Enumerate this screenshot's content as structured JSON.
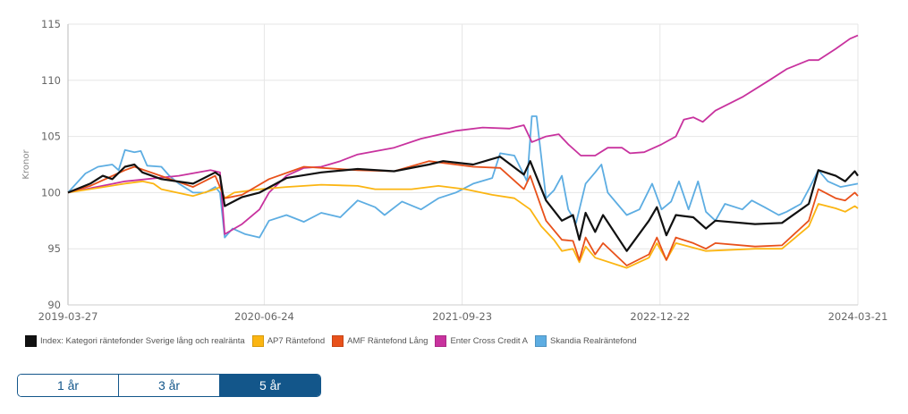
{
  "chart_data": {
    "type": "line",
    "ylabel": "Kronor",
    "ylim": [
      90,
      115
    ],
    "yticks": [
      "90",
      "95",
      "100",
      "105",
      "110",
      "115"
    ],
    "xlim": [
      0,
      4.99
    ],
    "x_unit": "years since 2019-03-27",
    "xticks": [
      {
        "t": 0,
        "label": "2019-03-27"
      },
      {
        "t": 1.24,
        "label": "2020-06-24"
      },
      {
        "t": 2.49,
        "label": "2021-09-23"
      },
      {
        "t": 3.74,
        "label": "2022-12-22"
      },
      {
        "t": 4.99,
        "label": "2024-03-21"
      }
    ],
    "grid": true,
    "legend_position": "bottom-left",
    "series": [
      {
        "name": "Skandia Realräntefond",
        "color": "#5dade2",
        "points": [
          [
            0,
            100
          ],
          [
            0.11,
            101.7
          ],
          [
            0.19,
            102.3
          ],
          [
            0.28,
            102.5
          ],
          [
            0.32,
            102
          ],
          [
            0.36,
            103.8
          ],
          [
            0.42,
            103.6
          ],
          [
            0.46,
            103.7
          ],
          [
            0.5,
            102.4
          ],
          [
            0.59,
            102.3
          ],
          [
            0.64,
            101.5
          ],
          [
            0.7,
            100.8
          ],
          [
            0.79,
            100
          ],
          [
            0.87,
            100
          ],
          [
            0.93,
            100.5
          ],
          [
            0.96,
            100
          ],
          [
            0.99,
            96
          ],
          [
            1.04,
            96.8
          ],
          [
            1.12,
            96.3
          ],
          [
            1.21,
            96
          ],
          [
            1.27,
            97.5
          ],
          [
            1.38,
            98
          ],
          [
            1.49,
            97.4
          ],
          [
            1.6,
            98.2
          ],
          [
            1.72,
            97.8
          ],
          [
            1.83,
            99.3
          ],
          [
            1.94,
            98.7
          ],
          [
            2.0,
            98
          ],
          [
            2.11,
            99.2
          ],
          [
            2.23,
            98.5
          ],
          [
            2.34,
            99.5
          ],
          [
            2.45,
            100
          ],
          [
            2.56,
            100.8
          ],
          [
            2.68,
            101.3
          ],
          [
            2.73,
            103.5
          ],
          [
            2.82,
            103.3
          ],
          [
            2.9,
            101
          ],
          [
            2.93,
            106.8
          ],
          [
            2.96,
            106.8
          ],
          [
            3.02,
            99.5
          ],
          [
            3.07,
            100.2
          ],
          [
            3.12,
            101.5
          ],
          [
            3.16,
            98.5
          ],
          [
            3.21,
            97.3
          ],
          [
            3.27,
            100.8
          ],
          [
            3.33,
            101.8
          ],
          [
            3.37,
            102.5
          ],
          [
            3.41,
            100
          ],
          [
            3.47,
            99
          ],
          [
            3.53,
            98
          ],
          [
            3.61,
            98.5
          ],
          [
            3.69,
            100.8
          ],
          [
            3.75,
            98.5
          ],
          [
            3.81,
            99.2
          ],
          [
            3.86,
            101
          ],
          [
            3.92,
            98.5
          ],
          [
            3.98,
            101
          ],
          [
            4.03,
            98.3
          ],
          [
            4.09,
            97.5
          ],
          [
            4.15,
            99
          ],
          [
            4.26,
            98.5
          ],
          [
            4.32,
            99.3
          ],
          [
            4.4,
            98.7
          ],
          [
            4.49,
            98
          ],
          [
            4.54,
            98.3
          ],
          [
            4.63,
            99
          ],
          [
            4.68,
            100.3
          ],
          [
            4.74,
            102
          ],
          [
            4.8,
            101
          ],
          [
            4.88,
            100.5
          ],
          [
            4.99,
            100.8
          ]
        ]
      },
      {
        "name": "Enter Cross Credit A",
        "color": "#c8329e",
        "points": [
          [
            0,
            100
          ],
          [
            0.36,
            101
          ],
          [
            0.7,
            101.5
          ],
          [
            0.9,
            102
          ],
          [
            0.96,
            101.8
          ],
          [
            0.99,
            96.3
          ],
          [
            1.1,
            97.2
          ],
          [
            1.21,
            98.5
          ],
          [
            1.27,
            100
          ],
          [
            1.38,
            101.5
          ],
          [
            1.49,
            102.2
          ],
          [
            1.6,
            102.3
          ],
          [
            1.72,
            102.8
          ],
          [
            1.83,
            103.4
          ],
          [
            2.06,
            104
          ],
          [
            2.23,
            104.8
          ],
          [
            2.45,
            105.5
          ],
          [
            2.62,
            105.8
          ],
          [
            2.79,
            105.7
          ],
          [
            2.88,
            106
          ],
          [
            2.93,
            104.5
          ],
          [
            3.02,
            105
          ],
          [
            3.1,
            105.2
          ],
          [
            3.16,
            104.3
          ],
          [
            3.24,
            103.3
          ],
          [
            3.33,
            103.3
          ],
          [
            3.41,
            104
          ],
          [
            3.5,
            104
          ],
          [
            3.55,
            103.5
          ],
          [
            3.64,
            103.6
          ],
          [
            3.75,
            104.3
          ],
          [
            3.84,
            105
          ],
          [
            3.89,
            106.5
          ],
          [
            3.95,
            106.7
          ],
          [
            4.01,
            106.3
          ],
          [
            4.09,
            107.3
          ],
          [
            4.26,
            108.5
          ],
          [
            4.43,
            110
          ],
          [
            4.54,
            111
          ],
          [
            4.68,
            111.8
          ],
          [
            4.74,
            111.8
          ],
          [
            4.85,
            112.8
          ],
          [
            4.94,
            113.7
          ],
          [
            4.99,
            114
          ]
        ]
      },
      {
        "name": "AP7 Räntefond",
        "color": "#fbb512",
        "points": [
          [
            0,
            100
          ],
          [
            0.36,
            100.8
          ],
          [
            0.47,
            101
          ],
          [
            0.54,
            100.8
          ],
          [
            0.59,
            100.3
          ],
          [
            0.79,
            99.7
          ],
          [
            0.93,
            100.3
          ],
          [
            0.96,
            100.5
          ],
          [
            0.99,
            99.5
          ],
          [
            1.05,
            100
          ],
          [
            1.21,
            100.3
          ],
          [
            1.38,
            100.5
          ],
          [
            1.6,
            100.7
          ],
          [
            1.83,
            100.6
          ],
          [
            1.94,
            100.3
          ],
          [
            2.17,
            100.3
          ],
          [
            2.34,
            100.6
          ],
          [
            2.51,
            100.3
          ],
          [
            2.68,
            99.8
          ],
          [
            2.82,
            99.5
          ],
          [
            2.92,
            98.5
          ],
          [
            2.99,
            97
          ],
          [
            3.07,
            95.8
          ],
          [
            3.12,
            94.8
          ],
          [
            3.19,
            95
          ],
          [
            3.23,
            93.8
          ],
          [
            3.27,
            95.2
          ],
          [
            3.33,
            94.2
          ],
          [
            3.53,
            93.3
          ],
          [
            3.67,
            94.2
          ],
          [
            3.72,
            95.5
          ],
          [
            3.78,
            94
          ],
          [
            3.84,
            95.5
          ],
          [
            4.03,
            94.8
          ],
          [
            4.34,
            95
          ],
          [
            4.51,
            95
          ],
          [
            4.68,
            97
          ],
          [
            4.74,
            99
          ],
          [
            4.85,
            98.6
          ],
          [
            4.91,
            98.3
          ],
          [
            4.97,
            98.8
          ],
          [
            4.99,
            98.6
          ]
        ]
      },
      {
        "name": "AMF Räntefond Lång",
        "color": "#e8511b",
        "points": [
          [
            0,
            100
          ],
          [
            0.14,
            100.6
          ],
          [
            0.36,
            102
          ],
          [
            0.42,
            102.3
          ],
          [
            0.79,
            100.5
          ],
          [
            0.93,
            101.5
          ],
          [
            0.99,
            99.5
          ],
          [
            1.1,
            99.8
          ],
          [
            1.27,
            101.2
          ],
          [
            1.49,
            102.3
          ],
          [
            1.83,
            102
          ],
          [
            2.06,
            101.9
          ],
          [
            2.28,
            102.8
          ],
          [
            2.56,
            102.3
          ],
          [
            2.73,
            102.2
          ],
          [
            2.88,
            100.3
          ],
          [
            2.92,
            101.5
          ],
          [
            3.02,
            97.5
          ],
          [
            3.12,
            95.8
          ],
          [
            3.19,
            95.7
          ],
          [
            3.23,
            94
          ],
          [
            3.27,
            96
          ],
          [
            3.33,
            94.5
          ],
          [
            3.38,
            95.5
          ],
          [
            3.53,
            93.5
          ],
          [
            3.67,
            94.5
          ],
          [
            3.72,
            96
          ],
          [
            3.78,
            94
          ],
          [
            3.84,
            96
          ],
          [
            3.95,
            95.5
          ],
          [
            4.03,
            95
          ],
          [
            4.09,
            95.5
          ],
          [
            4.34,
            95.2
          ],
          [
            4.51,
            95.3
          ],
          [
            4.68,
            97.5
          ],
          [
            4.74,
            100.3
          ],
          [
            4.85,
            99.5
          ],
          [
            4.91,
            99.3
          ],
          [
            4.97,
            100
          ],
          [
            4.99,
            99.7
          ]
        ]
      },
      {
        "name": "Index: Kategori räntefonder Sverige lång och realränta",
        "color": "#111111",
        "points": [
          [
            0,
            100
          ],
          [
            0.14,
            100.8
          ],
          [
            0.22,
            101.5
          ],
          [
            0.28,
            101.2
          ],
          [
            0.36,
            102.3
          ],
          [
            0.42,
            102.5
          ],
          [
            0.47,
            101.8
          ],
          [
            0.59,
            101.2
          ],
          [
            0.79,
            100.8
          ],
          [
            0.93,
            101.8
          ],
          [
            0.96,
            101.5
          ],
          [
            0.99,
            98.8
          ],
          [
            1.1,
            99.6
          ],
          [
            1.21,
            100
          ],
          [
            1.38,
            101.3
          ],
          [
            1.6,
            101.8
          ],
          [
            1.83,
            102.1
          ],
          [
            2.06,
            101.9
          ],
          [
            2.28,
            102.5
          ],
          [
            2.37,
            102.8
          ],
          [
            2.56,
            102.5
          ],
          [
            2.73,
            103.2
          ],
          [
            2.88,
            101.6
          ],
          [
            2.92,
            102.8
          ],
          [
            3.02,
            99.3
          ],
          [
            3.12,
            97.5
          ],
          [
            3.19,
            98
          ],
          [
            3.23,
            95.8
          ],
          [
            3.27,
            98.2
          ],
          [
            3.33,
            96.5
          ],
          [
            3.38,
            98
          ],
          [
            3.53,
            94.8
          ],
          [
            3.67,
            97.5
          ],
          [
            3.72,
            98.7
          ],
          [
            3.78,
            96.2
          ],
          [
            3.84,
            98
          ],
          [
            3.95,
            97.8
          ],
          [
            4.03,
            96.8
          ],
          [
            4.09,
            97.5
          ],
          [
            4.34,
            97.2
          ],
          [
            4.51,
            97.3
          ],
          [
            4.68,
            99
          ],
          [
            4.74,
            102
          ],
          [
            4.85,
            101.5
          ],
          [
            4.91,
            101
          ],
          [
            4.97,
            101.9
          ],
          [
            4.99,
            101.5
          ]
        ]
      }
    ]
  },
  "legend": [
    {
      "label": "Index: Kategori räntefonder Sverige lång och realränta",
      "color": "#111111"
    },
    {
      "label": "AP7 Räntefond",
      "color": "#fbb512"
    },
    {
      "label": "AMF Räntefond Lång",
      "color": "#e8511b"
    },
    {
      "label": "Enter Cross Credit A",
      "color": "#c8329e"
    },
    {
      "label": "Skandia Realräntefond",
      "color": "#5dade2"
    }
  ],
  "range_buttons": {
    "b1": "1 år",
    "b3": "3 år",
    "b5": "5 år",
    "active": "5 år"
  }
}
